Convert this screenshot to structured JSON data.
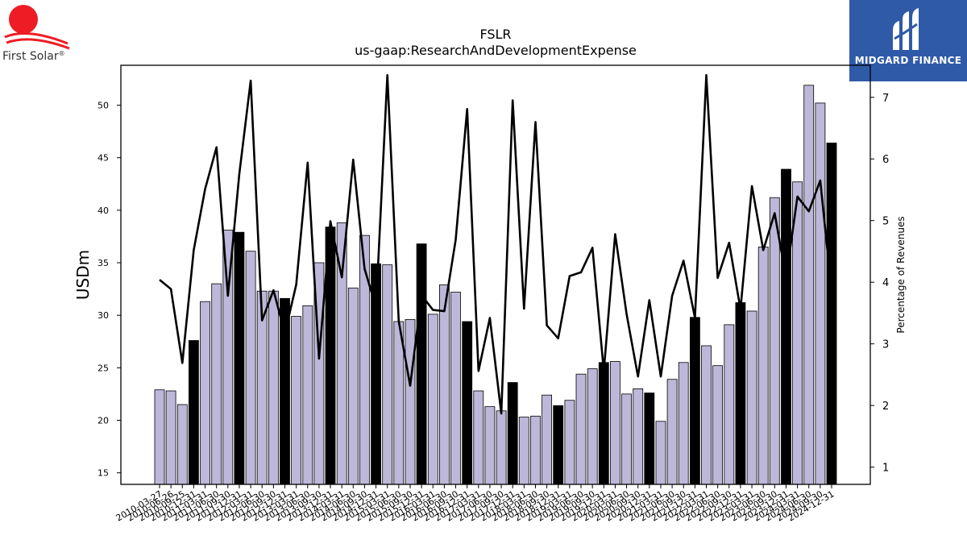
{
  "logos": {
    "left_name": "First Solar",
    "left_registered": "®",
    "right_name": "MIDGARD FINANCE"
  },
  "chart_data": {
    "type": "bar",
    "title": "FSLR",
    "subtitle": "us-gaap:ResearchAndDevelopmentExpense",
    "ylabel": "USDm",
    "y2label": "Percentage of Revenues",
    "ylim": [
      13.9,
      53.8
    ],
    "y2lim": [
      0.72,
      7.52
    ],
    "yticks": [
      15,
      20,
      25,
      30,
      35,
      40,
      45,
      50
    ],
    "y2ticks": [
      1,
      2,
      3,
      4,
      5,
      6,
      7
    ],
    "colors": {
      "bar": "#bdb8d9",
      "bar_q4": "#000000",
      "bar_edge": "#000000",
      "line": "#000000"
    },
    "categories": [
      "2010-03-27",
      "2010-06-26",
      "2010-09-25",
      "2010-12-31",
      "2011-03-31",
      "2011-06-30",
      "2011-09-30",
      "2011-12-31",
      "2012-03-31",
      "2012-06-30",
      "2012-09-30",
      "2012-12-31",
      "2013-03-31",
      "2013-06-30",
      "2013-09-30",
      "2013-12-31",
      "2014-03-31",
      "2014-06-30",
      "2014-09-30",
      "2014-12-31",
      "2015-03-31",
      "2015-06-30",
      "2015-09-30",
      "2015-12-31",
      "2016-03-31",
      "2016-06-30",
      "2016-09-30",
      "2016-12-31",
      "2017-03-31",
      "2017-06-30",
      "2017-09-30",
      "2017-12-31",
      "2018-03-31",
      "2018-06-30",
      "2018-09-30",
      "2018-12-31",
      "2019-03-31",
      "2019-06-30",
      "2019-09-30",
      "2019-12-31",
      "2020-03-31",
      "2020-06-30",
      "2020-09-30",
      "2020-12-31",
      "2021-03-31",
      "2021-06-30",
      "2021-09-30",
      "2021-12-31",
      "2022-03-31",
      "2022-06-30",
      "2022-09-30",
      "2022-12-31",
      "2023-03-31",
      "2023-06-30",
      "2023-09-30",
      "2023-12-31",
      "2024-03-31",
      "2024-06-30",
      "2024-09-30",
      "2024-12-31"
    ],
    "values": [
      22.9,
      22.8,
      21.5,
      27.6,
      31.3,
      33.0,
      38.1,
      37.9,
      36.1,
      32.3,
      32.3,
      31.6,
      29.9,
      30.9,
      35.0,
      38.4,
      38.8,
      32.6,
      37.6,
      34.9,
      34.8,
      29.4,
      29.6,
      36.8,
      30.1,
      32.9,
      32.2,
      29.4,
      22.8,
      21.3,
      20.9,
      23.6,
      20.3,
      20.4,
      22.4,
      21.4,
      21.9,
      24.4,
      24.9,
      25.5,
      25.6,
      22.5,
      23.0,
      22.6,
      19.9,
      23.9,
      25.5,
      29.8,
      27.1,
      25.2,
      29.1,
      31.2,
      30.4,
      36.5,
      41.2,
      43.9,
      42.7,
      51.9,
      50.2,
      46.4
    ],
    "series": [
      {
        "name": "Percentage of Revenues",
        "axis": "right",
        "values": [
          4.04,
          3.89,
          2.69,
          4.52,
          5.51,
          6.19,
          3.78,
          5.75,
          7.27,
          3.38,
          3.87,
          3.17,
          3.96,
          5.94,
          2.76,
          4.99,
          4.08,
          5.99,
          4.22,
          3.59,
          7.36,
          3.37,
          2.32,
          3.79,
          3.55,
          3.53,
          4.69,
          6.81,
          2.56,
          3.42,
          1.87,
          6.95,
          3.57,
          6.6,
          3.3,
          3.09,
          4.1,
          4.16,
          4.56,
          2.56,
          4.78,
          3.48,
          2.47,
          3.71,
          2.47,
          3.78,
          4.35,
          3.42,
          7.36,
          4.07,
          4.64,
          3.56,
          5.56,
          4.52,
          5.12,
          4.07,
          5.39,
          5.15,
          5.65,
          3.85
        ]
      }
    ],
    "grid": false,
    "legend": "none"
  }
}
